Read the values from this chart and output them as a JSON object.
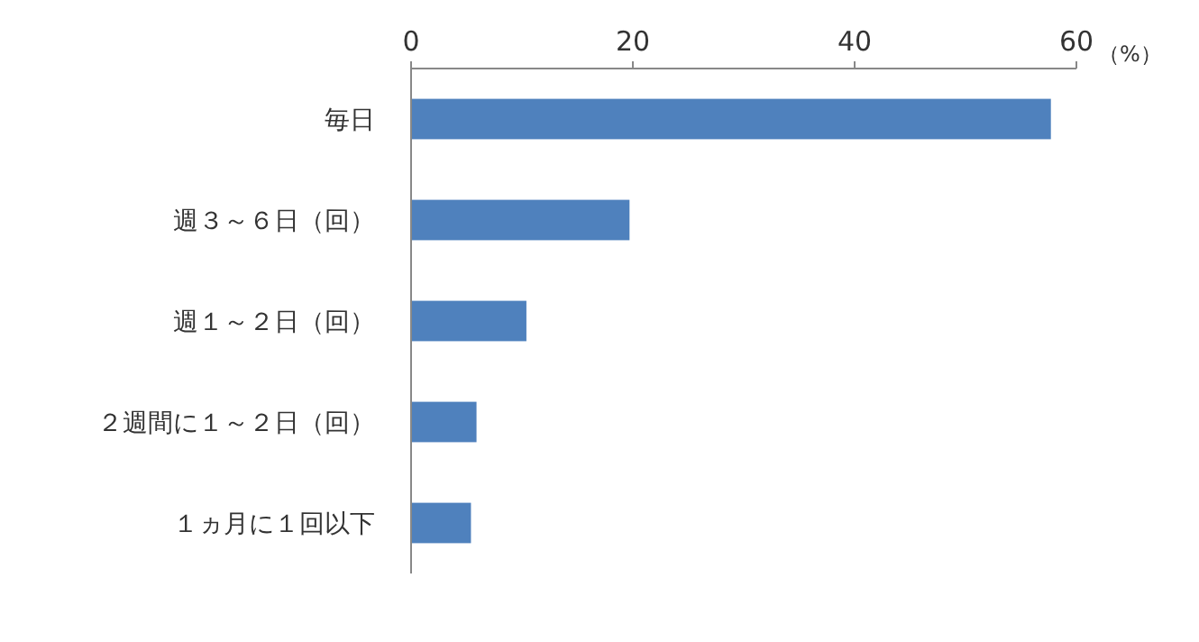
{
  "chart_data": {
    "type": "bar",
    "orientation": "horizontal",
    "xlabel": "（%）",
    "categories": [
      "毎日",
      "週３～６日（回）",
      "週１～２日（回）",
      "２週間に１～２日（回）",
      "１ヵ月に１回以下"
    ],
    "values": [
      57.7,
      19.7,
      10.4,
      5.9,
      5.4
    ],
    "color": "#4f81bd",
    "xlim": [
      0,
      60
    ],
    "xticks": [
      0,
      20,
      40,
      60
    ],
    "grid": false
  }
}
